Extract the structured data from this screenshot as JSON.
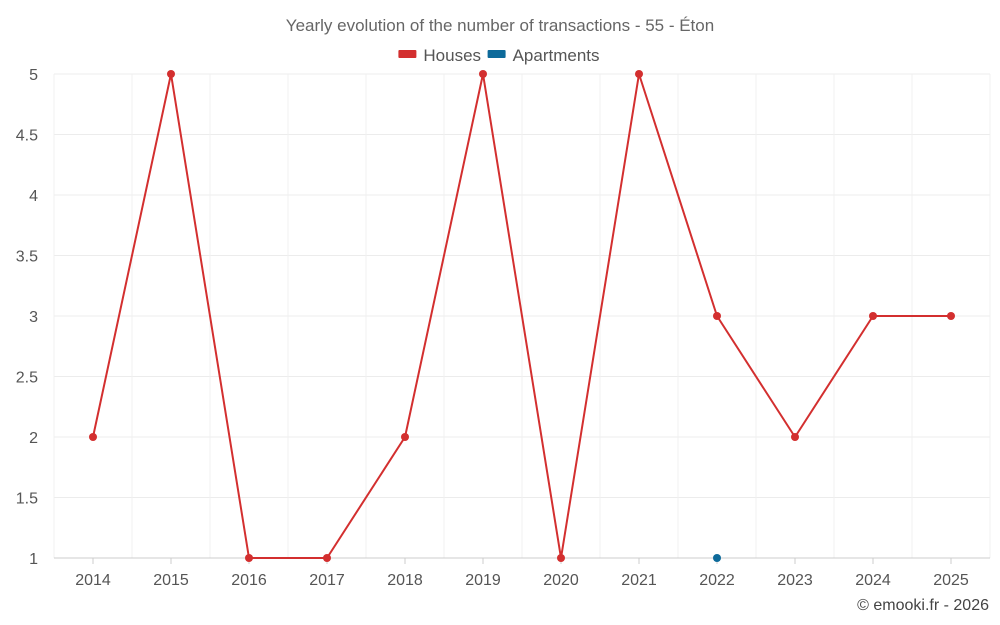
{
  "chart_data": {
    "type": "line",
    "title": "Yearly evolution of the number of transactions - 55 - Éton",
    "xlabel": "",
    "ylabel": "",
    "categories": [
      "2014",
      "2015",
      "2016",
      "2017",
      "2018",
      "2019",
      "2020",
      "2021",
      "2022",
      "2023",
      "2024",
      "2025"
    ],
    "ylim": [
      1,
      5
    ],
    "y_ticks": [
      "1",
      "1.5",
      "2",
      "2.5",
      "3",
      "3.5",
      "4",
      "4.5",
      "5"
    ],
    "legend_position": "top-center",
    "grid": true,
    "series": [
      {
        "name": "Houses",
        "color": "#d32f2f",
        "values": [
          2,
          5,
          1,
          1,
          2,
          5,
          1,
          5,
          3,
          2,
          3,
          3
        ]
      },
      {
        "name": "Apartments",
        "color": "#0d6a9a",
        "values": [
          null,
          null,
          null,
          null,
          null,
          null,
          null,
          null,
          1,
          null,
          null,
          null
        ]
      }
    ]
  },
  "credit": "© emooki.fr - 2026"
}
